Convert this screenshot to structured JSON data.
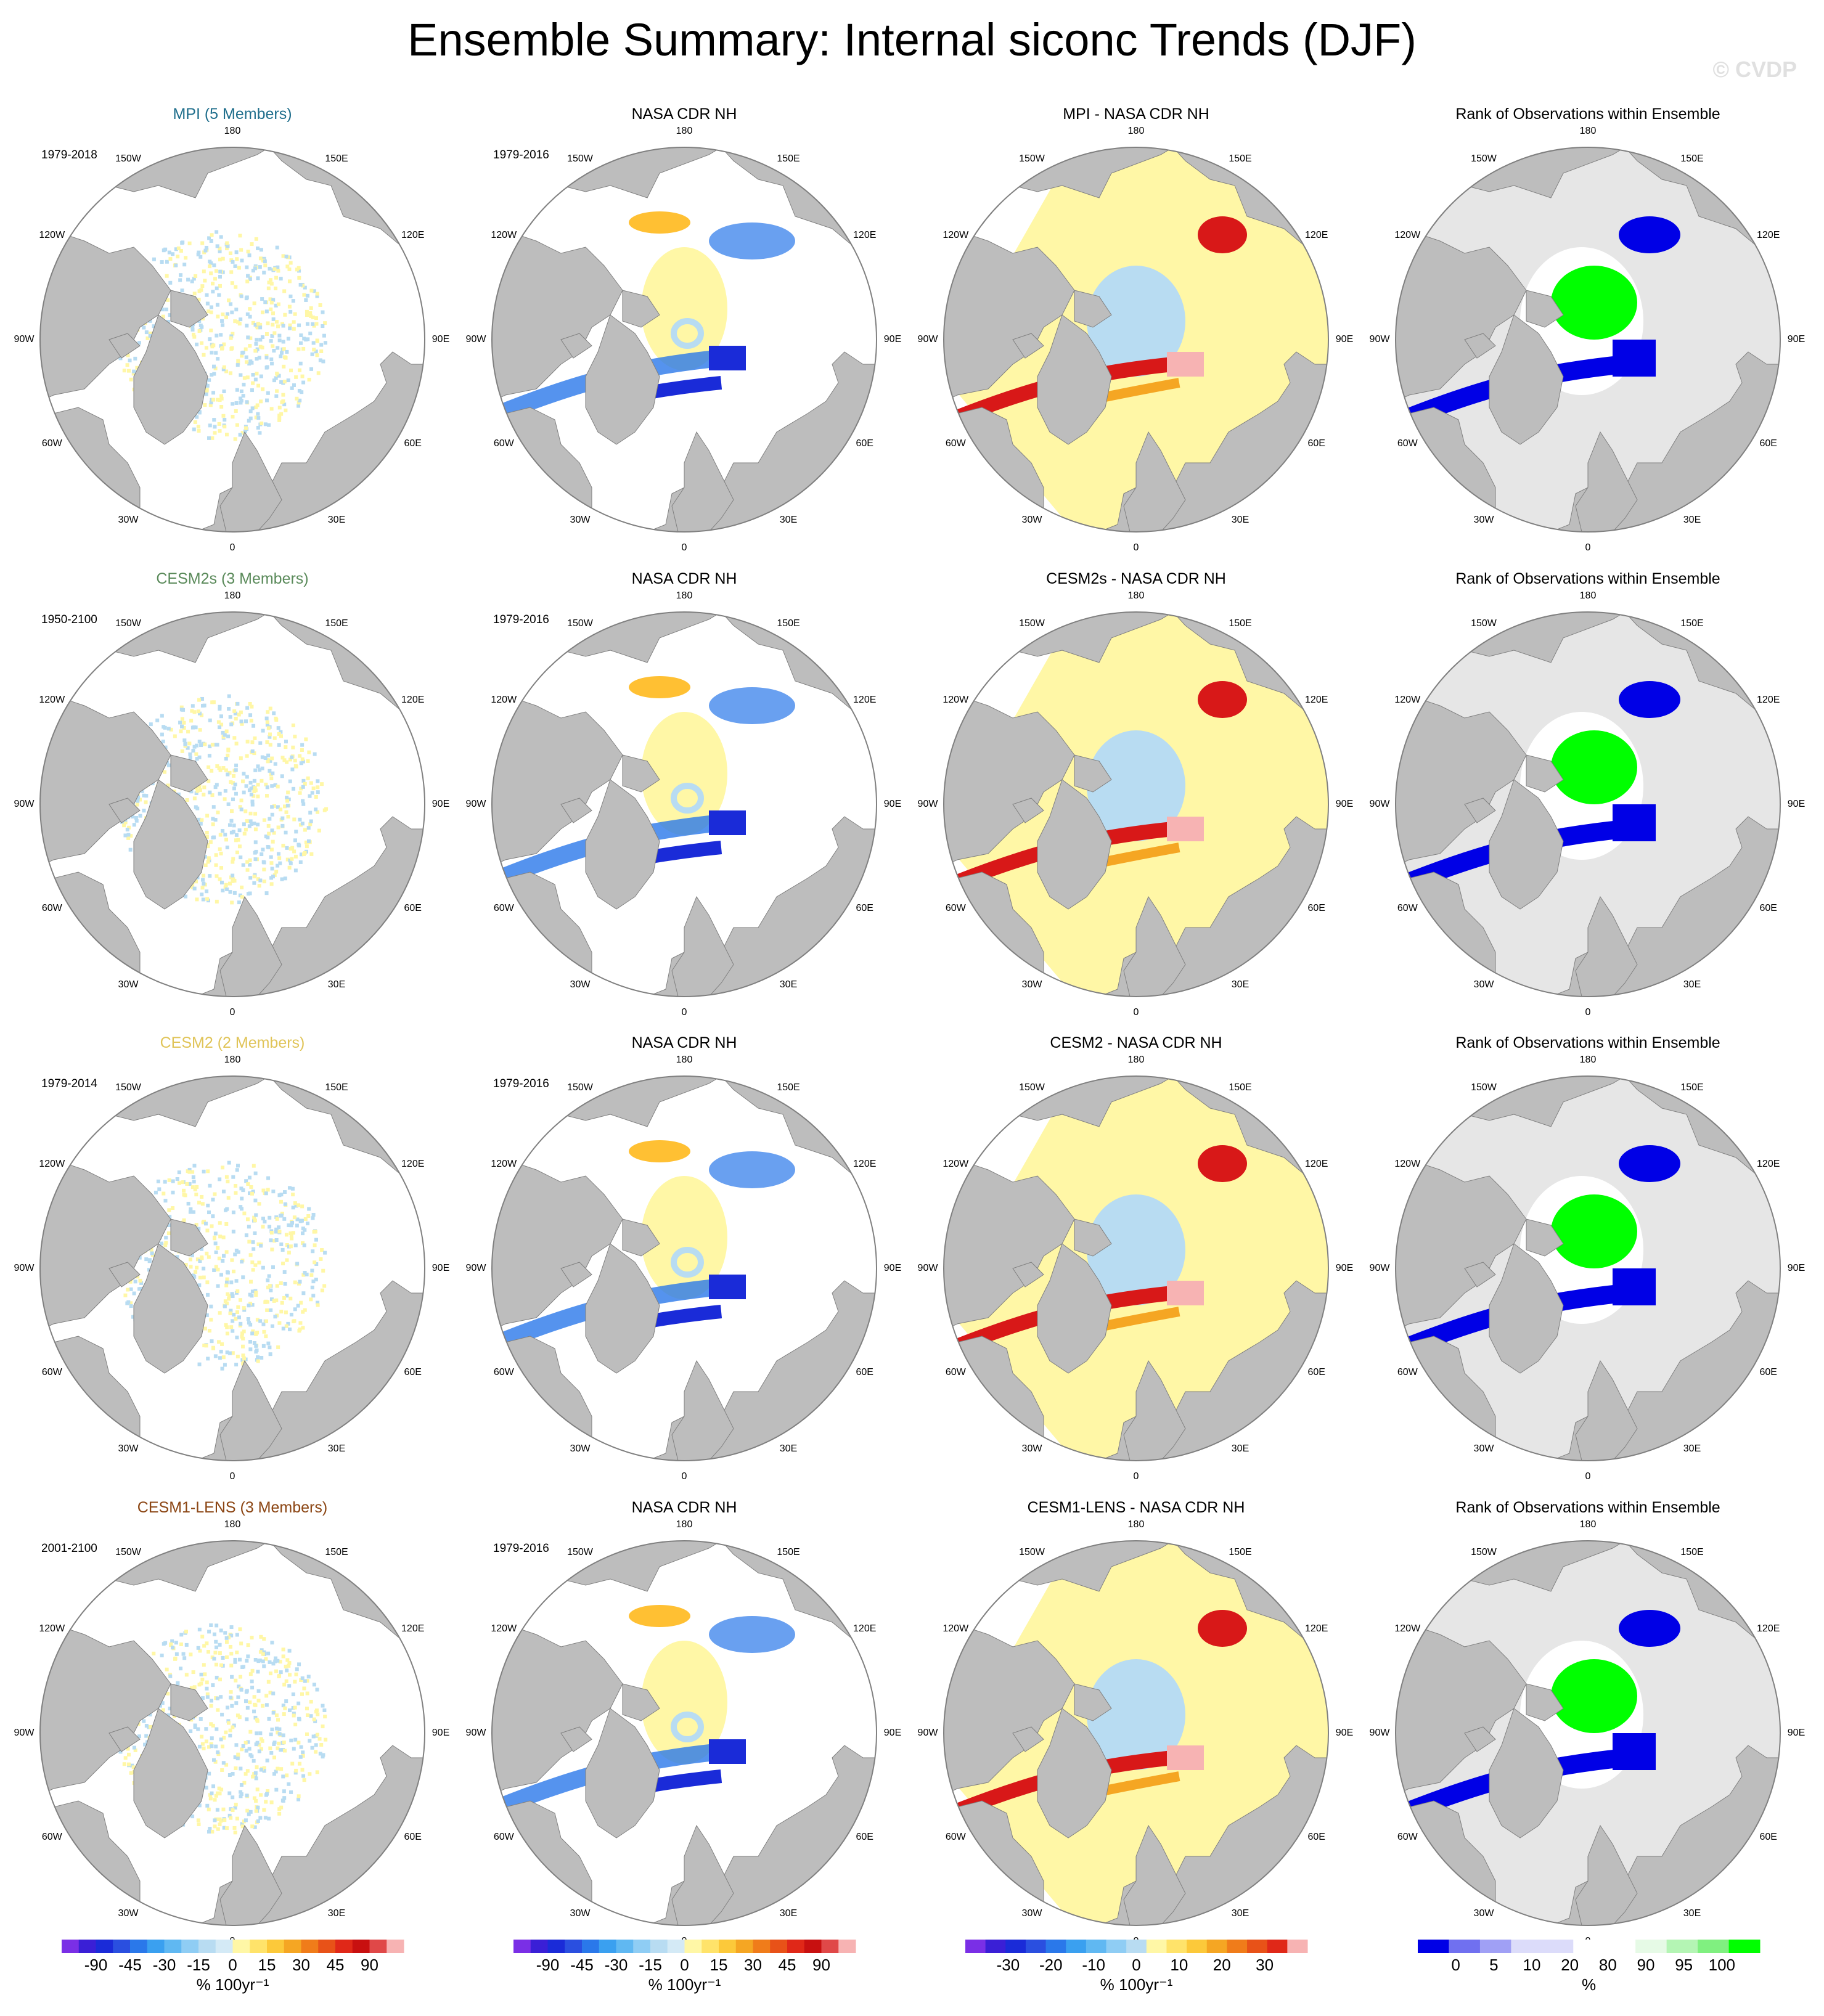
{
  "title": "Ensemble Summary: Internal siconc Trends (DJF)",
  "watermark": "© CVDP",
  "colors": {
    "land": "#bdbdbd",
    "ocean": "#ffffff",
    "rank_outside": "#e6e6e6",
    "pale_yellow": "#fff7a6",
    "pale_blue": "#b8dcf2",
    "dark_blue": "#1a2bd8",
    "mid_blue": "#2a78ea",
    "red": "#d81818",
    "orange": "#f5a623",
    "pink": "#f7b3b3",
    "rank_blue": "#0000e6",
    "rank_green": "#00ff00"
  },
  "lon_labels": [
    "180",
    "150E",
    "120E",
    "90E",
    "60E",
    "30E",
    "0",
    "30W",
    "60W",
    "90W",
    "120W",
    "150W"
  ],
  "rows": [
    {
      "model_title": "MPI (5 Members)",
      "model_color": "#1f6e8c",
      "model_years": "1979-2018",
      "obs_title": "NASA CDR NH",
      "obs_years": "1979-2016",
      "diff_title": "MPI - NASA CDR NH",
      "rank_title": "Rank of Observations within Ensemble"
    },
    {
      "model_title": "CESM2s (3 Members)",
      "model_color": "#5a8a5a",
      "model_years": "1950-2100",
      "obs_title": "NASA CDR NH",
      "obs_years": "1979-2016",
      "diff_title": "CESM2s - NASA CDR NH",
      "rank_title": "Rank of Observations within Ensemble"
    },
    {
      "model_title": "CESM2 (2 Members)",
      "model_color": "#e0c458",
      "model_years": "1979-2014",
      "obs_title": "NASA CDR NH",
      "obs_years": "1979-2016",
      "diff_title": "CESM2 - NASA CDR NH",
      "rank_title": "Rank of Observations within Ensemble"
    },
    {
      "model_title": "CESM1-LENS (3 Members)",
      "model_color": "#8b4513",
      "model_years": "2001-2100",
      "obs_title": "NASA CDR NH",
      "obs_years": "1979-2016",
      "diff_title": "CESM1-LENS - NASA CDR NH",
      "rank_title": "Rank of Observations within Ensemble"
    }
  ],
  "colorbars": [
    {
      "units": "% 100yr⁻¹",
      "colors": [
        "#7a2fe6",
        "#3a1fd6",
        "#1a2bd8",
        "#2a4fe0",
        "#2a78ea",
        "#3aa0f0",
        "#60b8f2",
        "#8fcdf4",
        "#b8dcf2",
        "#d4eaf6",
        "#fff7a6",
        "#ffe36a",
        "#fcc93a",
        "#f5a623",
        "#f07c1a",
        "#e85218",
        "#e02818",
        "#c81010",
        "#e04848",
        "#f7b3b3"
      ],
      "ticks": [
        "-90",
        "-45",
        "-30",
        "-15",
        "0",
        "15",
        "30",
        "45",
        "90"
      ]
    },
    {
      "units": "% 100yr⁻¹",
      "colors": [
        "#7a2fe6",
        "#3a1fd6",
        "#1a2bd8",
        "#2a4fe0",
        "#2a78ea",
        "#3aa0f0",
        "#60b8f2",
        "#8fcdf4",
        "#b8dcf2",
        "#d4eaf6",
        "#fff7a6",
        "#ffe36a",
        "#fcc93a",
        "#f5a623",
        "#f07c1a",
        "#e85218",
        "#e02818",
        "#c81010",
        "#e04848",
        "#f7b3b3"
      ],
      "ticks": [
        "-90",
        "-45",
        "-30",
        "-15",
        "0",
        "15",
        "30",
        "45",
        "90"
      ]
    },
    {
      "units": "% 100yr⁻¹",
      "colors": [
        "#7a2fe6",
        "#3a1fd6",
        "#1a2bd8",
        "#2a4fe0",
        "#2a78ea",
        "#3aa0f0",
        "#60b8f2",
        "#8fcdf4",
        "#b8dcf2",
        "#fff7a6",
        "#ffe36a",
        "#fcc93a",
        "#f5a623",
        "#f07c1a",
        "#e85218",
        "#e02818",
        "#f7b3b3"
      ],
      "ticks": [
        "-30",
        "-20",
        "-10",
        "0",
        "10",
        "20",
        "30"
      ]
    },
    {
      "units": "%",
      "colors": [
        "#0000e6",
        "#7070f0",
        "#a0a0f5",
        "#dcdcfa",
        "#dcdcfa",
        "#ffffff",
        "#ffffff",
        "#e6fae6",
        "#b4f5b4",
        "#80f080",
        "#00ff00"
      ],
      "ticks": [
        "0",
        "5",
        "10",
        "20",
        "80",
        "90",
        "95",
        "100"
      ]
    }
  ]
}
